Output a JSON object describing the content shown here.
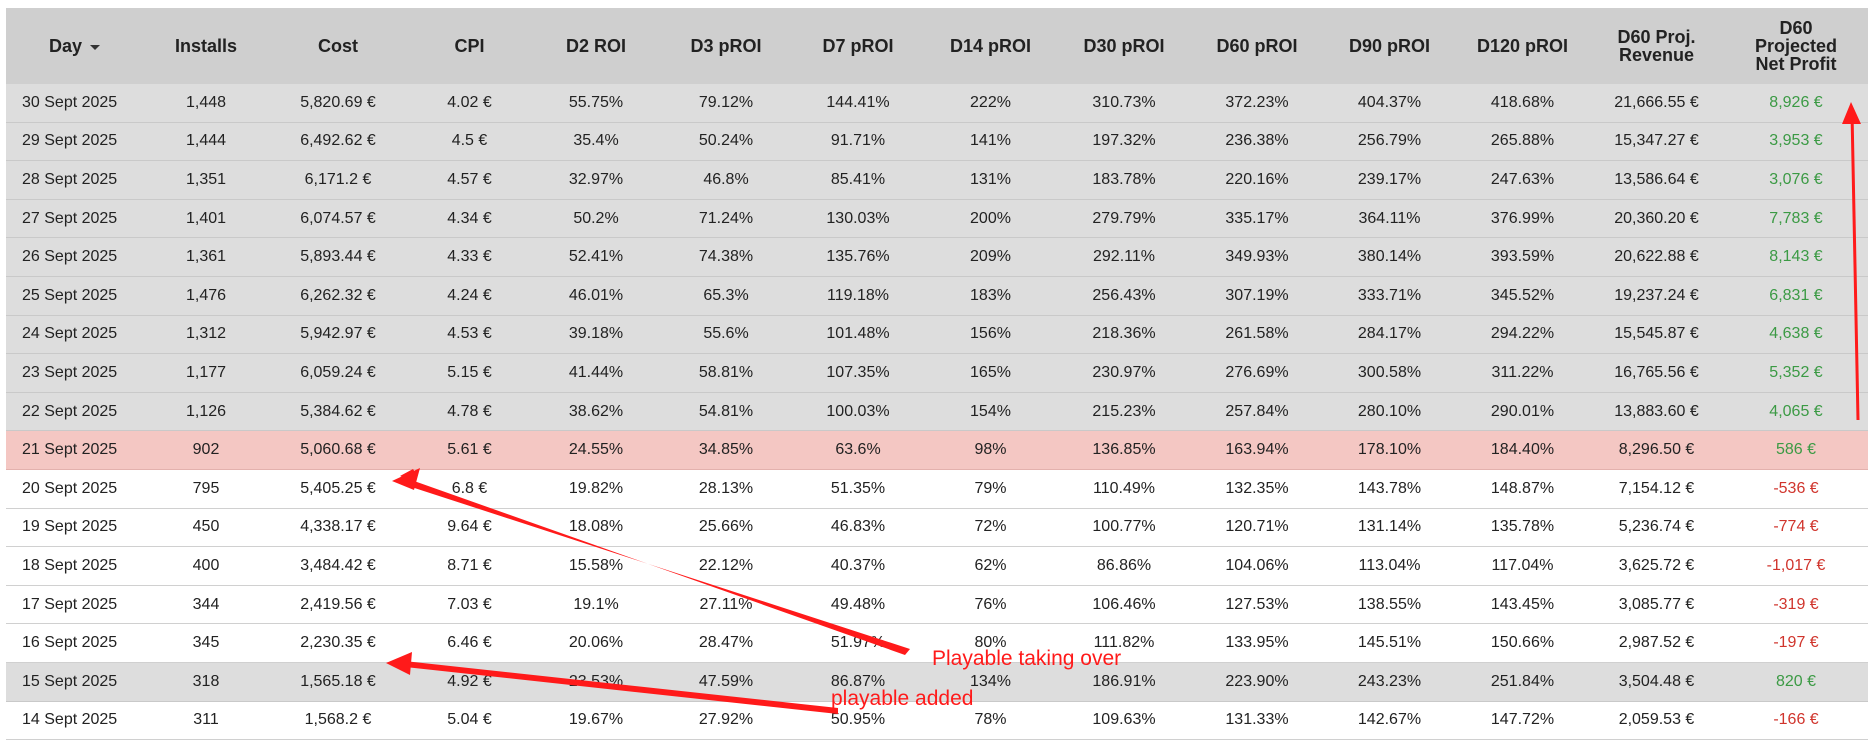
{
  "columns": [
    "Day",
    "Installs",
    "Cost",
    "CPI",
    "D2 ROI",
    "D3 pROI",
    "D7 pROI",
    "D14 pROI",
    "D30 pROI",
    "D60 pROI",
    "D90 pROI",
    "D120 pROI",
    "D60 Proj. Revenue",
    "D60 Projected Net Profit"
  ],
  "rows": [
    {
      "style": "grey",
      "profit_sign": "pos",
      "cells": [
        "30 Sept 2025",
        "1,448",
        "5,820.69 €",
        "4.02 €",
        "55.75%",
        "79.12%",
        "144.41%",
        "222%",
        "310.73%",
        "372.23%",
        "404.37%",
        "418.68%",
        "21,666.55 €",
        "8,926 €"
      ]
    },
    {
      "style": "grey",
      "profit_sign": "pos",
      "cells": [
        "29 Sept 2025",
        "1,444",
        "6,492.62 €",
        "4.5 €",
        "35.4%",
        "50.24%",
        "91.71%",
        "141%",
        "197.32%",
        "236.38%",
        "256.79%",
        "265.88%",
        "15,347.27 €",
        "3,953 €"
      ]
    },
    {
      "style": "grey",
      "profit_sign": "pos",
      "cells": [
        "28 Sept 2025",
        "1,351",
        "6,171.2 €",
        "4.57 €",
        "32.97%",
        "46.8%",
        "85.41%",
        "131%",
        "183.78%",
        "220.16%",
        "239.17%",
        "247.63%",
        "13,586.64 €",
        "3,076 €"
      ]
    },
    {
      "style": "grey",
      "profit_sign": "pos",
      "cells": [
        "27 Sept 2025",
        "1,401",
        "6,074.57 €",
        "4.34 €",
        "50.2%",
        "71.24%",
        "130.03%",
        "200%",
        "279.79%",
        "335.17%",
        "364.11%",
        "376.99%",
        "20,360.20 €",
        "7,783 €"
      ]
    },
    {
      "style": "grey",
      "profit_sign": "pos",
      "cells": [
        "26 Sept 2025",
        "1,361",
        "5,893.44 €",
        "4.33 €",
        "52.41%",
        "74.38%",
        "135.76%",
        "209%",
        "292.11%",
        "349.93%",
        "380.14%",
        "393.59%",
        "20,622.88 €",
        "8,143 €"
      ]
    },
    {
      "style": "grey",
      "profit_sign": "pos",
      "cells": [
        "25 Sept 2025",
        "1,476",
        "6,262.32 €",
        "4.24 €",
        "46.01%",
        "65.3%",
        "119.18%",
        "183%",
        "256.43%",
        "307.19%",
        "333.71%",
        "345.52%",
        "19,237.24 €",
        "6,831 €"
      ]
    },
    {
      "style": "grey",
      "profit_sign": "pos",
      "cells": [
        "24 Sept 2025",
        "1,312",
        "5,942.97 €",
        "4.53 €",
        "39.18%",
        "55.6%",
        "101.48%",
        "156%",
        "218.36%",
        "261.58%",
        "284.17%",
        "294.22%",
        "15,545.87 €",
        "4,638 €"
      ]
    },
    {
      "style": "grey",
      "profit_sign": "pos",
      "cells": [
        "23 Sept 2025",
        "1,177",
        "6,059.24 €",
        "5.15 €",
        "41.44%",
        "58.81%",
        "107.35%",
        "165%",
        "230.97%",
        "276.69%",
        "300.58%",
        "311.22%",
        "16,765.56 €",
        "5,352 €"
      ]
    },
    {
      "style": "grey",
      "profit_sign": "pos",
      "cells": [
        "22 Sept 2025",
        "1,126",
        "5,384.62 €",
        "4.78 €",
        "38.62%",
        "54.81%",
        "100.03%",
        "154%",
        "215.23%",
        "257.84%",
        "280.10%",
        "290.01%",
        "13,883.60 €",
        "4,065 €"
      ]
    },
    {
      "style": "pink",
      "profit_sign": "pos",
      "cells": [
        "21 Sept 2025",
        "902",
        "5,060.68 €",
        "5.61 €",
        "24.55%",
        "34.85%",
        "63.6%",
        "98%",
        "136.85%",
        "163.94%",
        "178.10%",
        "184.40%",
        "8,296.50 €",
        "586 €"
      ]
    },
    {
      "style": "white",
      "profit_sign": "neg",
      "cells": [
        "20 Sept 2025",
        "795",
        "5,405.25 €",
        "6.8 €",
        "19.82%",
        "28.13%",
        "51.35%",
        "79%",
        "110.49%",
        "132.35%",
        "143.78%",
        "148.87%",
        "7,154.12 €",
        "-536 €"
      ]
    },
    {
      "style": "white",
      "profit_sign": "neg",
      "cells": [
        "19 Sept 2025",
        "450",
        "4,338.17 €",
        "9.64 €",
        "18.08%",
        "25.66%",
        "46.83%",
        "72%",
        "100.77%",
        "120.71%",
        "131.14%",
        "135.78%",
        "5,236.74 €",
        "-774 €"
      ]
    },
    {
      "style": "white",
      "profit_sign": "neg",
      "cells": [
        "18 Sept 2025",
        "400",
        "3,484.42 €",
        "8.71 €",
        "15.58%",
        "22.12%",
        "40.37%",
        "62%",
        "86.86%",
        "104.06%",
        "113.04%",
        "117.04%",
        "3,625.72 €",
        "-1,017 €"
      ]
    },
    {
      "style": "white",
      "profit_sign": "neg",
      "cells": [
        "17 Sept 2025",
        "344",
        "2,419.56 €",
        "7.03 €",
        "19.1%",
        "27.11%",
        "49.48%",
        "76%",
        "106.46%",
        "127.53%",
        "138.55%",
        "143.45%",
        "3,085.77 €",
        "-319 €"
      ]
    },
    {
      "style": "white",
      "profit_sign": "neg",
      "cells": [
        "16 Sept 2025",
        "345",
        "2,230.35 €",
        "6.46 €",
        "20.06%",
        "28.47%",
        "51.97%",
        "80%",
        "111.82%",
        "133.95%",
        "145.51%",
        "150.66%",
        "2,987.52 €",
        "-197 €"
      ]
    },
    {
      "style": "grey",
      "profit_sign": "pos",
      "cells": [
        "15 Sept 2025",
        "318",
        "1,565.18 €",
        "4.92 €",
        "23.53%",
        "47.59%",
        "86.87%",
        "134%",
        "186.91%",
        "223.90%",
        "243.23%",
        "251.84%",
        "3,504.48 €",
        "820 €"
      ]
    },
    {
      "style": "white",
      "profit_sign": "neg",
      "cells": [
        "14 Sept 2025",
        "311",
        "1,568.2 €",
        "5.04 €",
        "19.67%",
        "27.92%",
        "50.95%",
        "78%",
        "109.63%",
        "131.33%",
        "142.67%",
        "147.72%",
        "2,059.53 €",
        "-166 €"
      ]
    }
  ],
  "colors": {
    "header_bg": "#cfcfcf",
    "row_grey": "#dddddd",
    "row_pink": "#f4c7c3",
    "profit_positive": "#3b9a44",
    "profit_negative": "#d0342c",
    "annotation": "#ff1a1a"
  },
  "annotations": {
    "playable_taking_over": "Playable taking over",
    "playable_added": "playable added"
  },
  "icons": {
    "sort": "sort-down-triangle-icon"
  }
}
